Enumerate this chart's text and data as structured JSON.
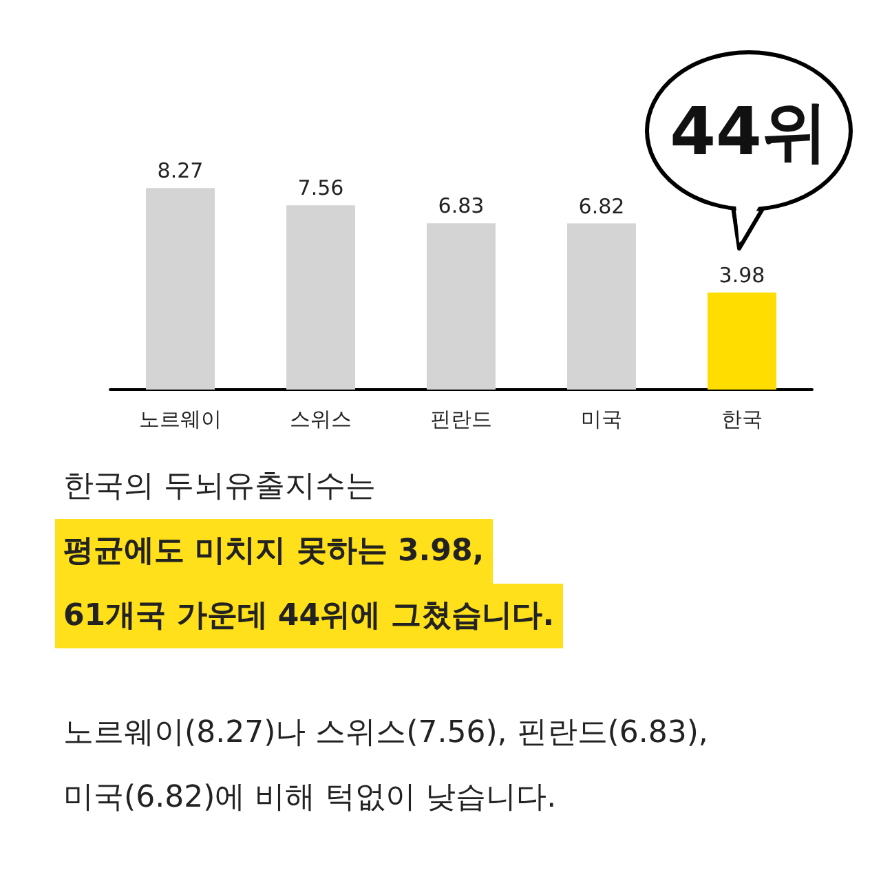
{
  "chart_data": {
    "type": "bar",
    "categories": [
      "노르웨이",
      "스위스",
      "핀란드",
      "미국",
      "한국"
    ],
    "values": [
      8.27,
      7.56,
      6.83,
      6.82,
      3.98
    ],
    "colors": [
      "#d4d4d4",
      "#d4d4d4",
      "#d4d4d4",
      "#d4d4d4",
      "#ffdd00"
    ],
    "data_labels": true,
    "grid": false,
    "annotations": [
      {
        "text": "44위",
        "x": "한국",
        "y": 3.98
      },
      "한국의 두뇌유출지수는",
      "평균에도 미치지 못하는 3.98,",
      "61개국 가운데 44위에 그쳤습니다.",
      "노르웨이(8.27)나 스위스(7.56), 핀란드(6.83),",
      "미국(6.82)에 비해 턱없이 낮습니다."
    ]
  }
}
